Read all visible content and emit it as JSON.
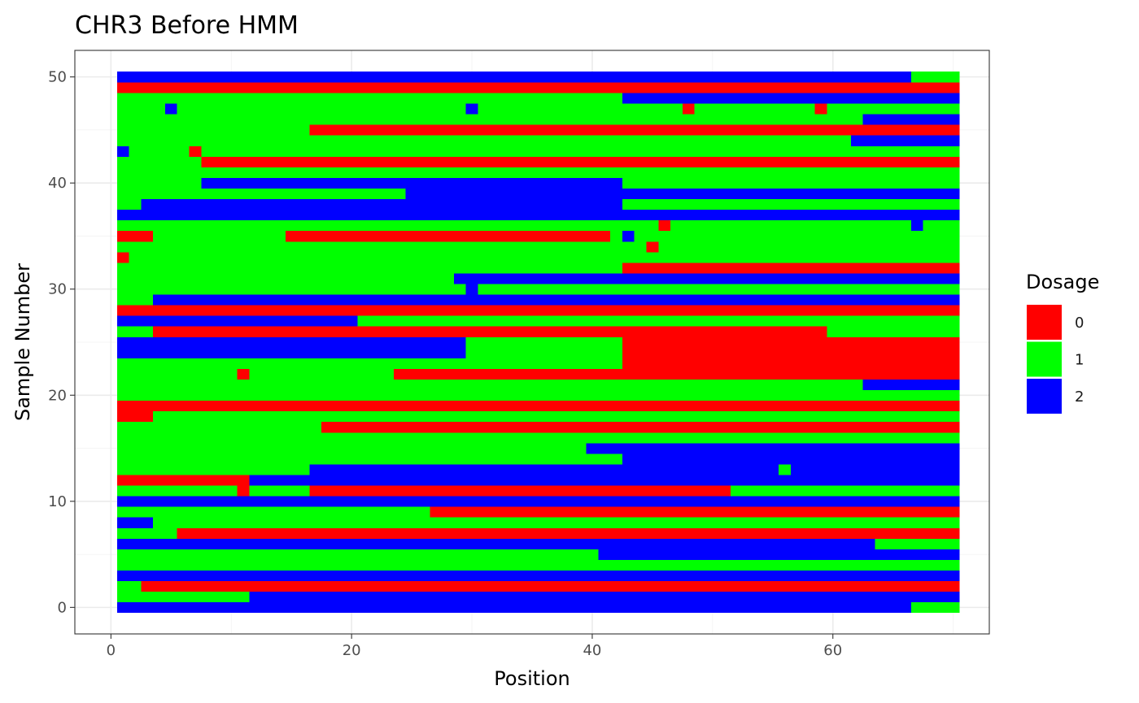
{
  "chart_data": {
    "type": "heatmap",
    "title": "CHR3 Before HMM",
    "xlabel": "Position",
    "ylabel": "Sample Number",
    "xlim": [
      -3,
      73
    ],
    "ylim": [
      -2.5,
      52.5
    ],
    "x_ticks": [
      0,
      20,
      40,
      60
    ],
    "y_ticks": [
      0,
      10,
      20,
      30,
      40,
      50
    ],
    "grid": true,
    "legend": {
      "title": "Dosage",
      "position": "right",
      "entries": [
        {
          "label": "0",
          "color": "#FF0000"
        },
        {
          "label": "1",
          "color": "#00FF00"
        },
        {
          "label": "2",
          "color": "#0000FF"
        }
      ]
    },
    "x_range": [
      1,
      70
    ],
    "rows_encoding": "each row lists [x_start, x_end, dosage] runs covering positions 1-70",
    "rows": [
      {
        "y": 0,
        "runs": [
          [
            1,
            66,
            2
          ],
          [
            67,
            70,
            1
          ]
        ]
      },
      {
        "y": 1,
        "runs": [
          [
            1,
            11,
            1
          ],
          [
            12,
            70,
            2
          ]
        ]
      },
      {
        "y": 2,
        "runs": [
          [
            1,
            2,
            1
          ],
          [
            3,
            70,
            0
          ]
        ]
      },
      {
        "y": 3,
        "runs": [
          [
            1,
            70,
            2
          ]
        ]
      },
      {
        "y": 4,
        "runs": [
          [
            1,
            70,
            1
          ]
        ]
      },
      {
        "y": 5,
        "runs": [
          [
            1,
            40,
            1
          ],
          [
            41,
            70,
            2
          ]
        ]
      },
      {
        "y": 6,
        "runs": [
          [
            1,
            63,
            2
          ],
          [
            64,
            70,
            1
          ]
        ]
      },
      {
        "y": 7,
        "runs": [
          [
            1,
            5,
            1
          ],
          [
            6,
            70,
            0
          ]
        ]
      },
      {
        "y": 8,
        "runs": [
          [
            1,
            3,
            2
          ],
          [
            4,
            70,
            1
          ]
        ]
      },
      {
        "y": 9,
        "runs": [
          [
            1,
            26,
            1
          ],
          [
            27,
            70,
            0
          ]
        ]
      },
      {
        "y": 10,
        "runs": [
          [
            1,
            70,
            2
          ]
        ]
      },
      {
        "y": 11,
        "runs": [
          [
            1,
            10,
            1
          ],
          [
            11,
            11,
            0
          ],
          [
            12,
            16,
            1
          ],
          [
            17,
            51,
            0
          ],
          [
            52,
            70,
            1
          ]
        ]
      },
      {
        "y": 12,
        "runs": [
          [
            1,
            11,
            0
          ],
          [
            12,
            70,
            2
          ]
        ]
      },
      {
        "y": 13,
        "runs": [
          [
            1,
            16,
            1
          ],
          [
            17,
            55,
            2
          ],
          [
            56,
            56,
            1
          ],
          [
            57,
            70,
            2
          ]
        ]
      },
      {
        "y": 14,
        "runs": [
          [
            1,
            42,
            1
          ],
          [
            43,
            70,
            2
          ]
        ]
      },
      {
        "y": 15,
        "runs": [
          [
            1,
            39,
            1
          ],
          [
            40,
            70,
            2
          ]
        ]
      },
      {
        "y": 16,
        "runs": [
          [
            1,
            70,
            1
          ]
        ]
      },
      {
        "y": 17,
        "runs": [
          [
            1,
            17,
            1
          ],
          [
            18,
            70,
            0
          ]
        ]
      },
      {
        "y": 18,
        "runs": [
          [
            1,
            3,
            0
          ],
          [
            4,
            70,
            1
          ]
        ]
      },
      {
        "y": 19,
        "runs": [
          [
            1,
            70,
            0
          ]
        ]
      },
      {
        "y": 20,
        "runs": [
          [
            1,
            70,
            1
          ]
        ]
      },
      {
        "y": 21,
        "runs": [
          [
            1,
            62,
            1
          ],
          [
            63,
            70,
            2
          ]
        ]
      },
      {
        "y": 22,
        "runs": [
          [
            1,
            10,
            1
          ],
          [
            11,
            11,
            0
          ],
          [
            12,
            23,
            1
          ],
          [
            24,
            70,
            0
          ]
        ]
      },
      {
        "y": 23,
        "runs": [
          [
            1,
            42,
            1
          ],
          [
            43,
            70,
            0
          ]
        ]
      },
      {
        "y": 24,
        "runs": [
          [
            1,
            29,
            2
          ],
          [
            30,
            42,
            1
          ],
          [
            43,
            70,
            0
          ]
        ]
      },
      {
        "y": 25,
        "runs": [
          [
            1,
            29,
            2
          ],
          [
            30,
            42,
            1
          ],
          [
            43,
            70,
            0
          ]
        ]
      },
      {
        "y": 26,
        "runs": [
          [
            1,
            3,
            1
          ],
          [
            4,
            59,
            0
          ],
          [
            60,
            70,
            1
          ]
        ]
      },
      {
        "y": 27,
        "runs": [
          [
            1,
            20,
            2
          ],
          [
            21,
            70,
            1
          ]
        ]
      },
      {
        "y": 28,
        "runs": [
          [
            1,
            70,
            0
          ]
        ]
      },
      {
        "y": 29,
        "runs": [
          [
            1,
            3,
            1
          ],
          [
            4,
            70,
            2
          ]
        ]
      },
      {
        "y": 30,
        "runs": [
          [
            1,
            29,
            1
          ],
          [
            30,
            30,
            2
          ],
          [
            31,
            70,
            1
          ]
        ]
      },
      {
        "y": 31,
        "runs": [
          [
            1,
            28,
            1
          ],
          [
            29,
            70,
            2
          ]
        ]
      },
      {
        "y": 32,
        "runs": [
          [
            1,
            42,
            1
          ],
          [
            43,
            70,
            0
          ]
        ]
      },
      {
        "y": 33,
        "runs": [
          [
            1,
            1,
            0
          ],
          [
            2,
            70,
            1
          ]
        ]
      },
      {
        "y": 34,
        "runs": [
          [
            1,
            44,
            1
          ],
          [
            45,
            45,
            0
          ],
          [
            46,
            70,
            1
          ]
        ]
      },
      {
        "y": 35,
        "runs": [
          [
            1,
            3,
            0
          ],
          [
            4,
            14,
            1
          ],
          [
            15,
            41,
            0
          ],
          [
            42,
            42,
            1
          ],
          [
            43,
            43,
            2
          ],
          [
            44,
            70,
            1
          ]
        ]
      },
      {
        "y": 36,
        "runs": [
          [
            1,
            45,
            1
          ],
          [
            46,
            46,
            0
          ],
          [
            47,
            66,
            1
          ],
          [
            67,
            67,
            2
          ],
          [
            68,
            70,
            1
          ]
        ]
      },
      {
        "y": 37,
        "runs": [
          [
            1,
            70,
            2
          ]
        ]
      },
      {
        "y": 38,
        "runs": [
          [
            1,
            2,
            1
          ],
          [
            3,
            42,
            2
          ],
          [
            43,
            70,
            1
          ]
        ]
      },
      {
        "y": 39,
        "runs": [
          [
            1,
            24,
            1
          ],
          [
            25,
            70,
            2
          ]
        ]
      },
      {
        "y": 40,
        "runs": [
          [
            1,
            7,
            1
          ],
          [
            8,
            42,
            2
          ],
          [
            43,
            70,
            1
          ]
        ]
      },
      {
        "y": 41,
        "runs": [
          [
            1,
            70,
            1
          ]
        ]
      },
      {
        "y": 42,
        "runs": [
          [
            1,
            7,
            1
          ],
          [
            8,
            70,
            0
          ]
        ]
      },
      {
        "y": 43,
        "runs": [
          [
            1,
            1,
            2
          ],
          [
            2,
            6,
            1
          ],
          [
            7,
            7,
            0
          ],
          [
            8,
            70,
            1
          ]
        ]
      },
      {
        "y": 44,
        "runs": [
          [
            1,
            61,
            1
          ],
          [
            62,
            70,
            2
          ]
        ]
      },
      {
        "y": 45,
        "runs": [
          [
            1,
            16,
            1
          ],
          [
            17,
            70,
            0
          ]
        ]
      },
      {
        "y": 46,
        "runs": [
          [
            1,
            62,
            1
          ],
          [
            63,
            70,
            2
          ]
        ]
      },
      {
        "y": 47,
        "runs": [
          [
            1,
            4,
            1
          ],
          [
            5,
            5,
            2
          ],
          [
            6,
            29,
            1
          ],
          [
            30,
            30,
            2
          ],
          [
            31,
            47,
            1
          ],
          [
            48,
            48,
            0
          ],
          [
            49,
            58,
            1
          ],
          [
            59,
            59,
            0
          ],
          [
            60,
            70,
            1
          ]
        ]
      },
      {
        "y": 48,
        "runs": [
          [
            1,
            28,
            1
          ],
          [
            29,
            42,
            1
          ],
          [
            43,
            70,
            2
          ]
        ]
      },
      {
        "y": 49,
        "runs": [
          [
            1,
            70,
            0
          ]
        ]
      },
      {
        "y": 50,
        "runs": [
          [
            1,
            66,
            2
          ],
          [
            67,
            70,
            1
          ]
        ]
      }
    ]
  }
}
